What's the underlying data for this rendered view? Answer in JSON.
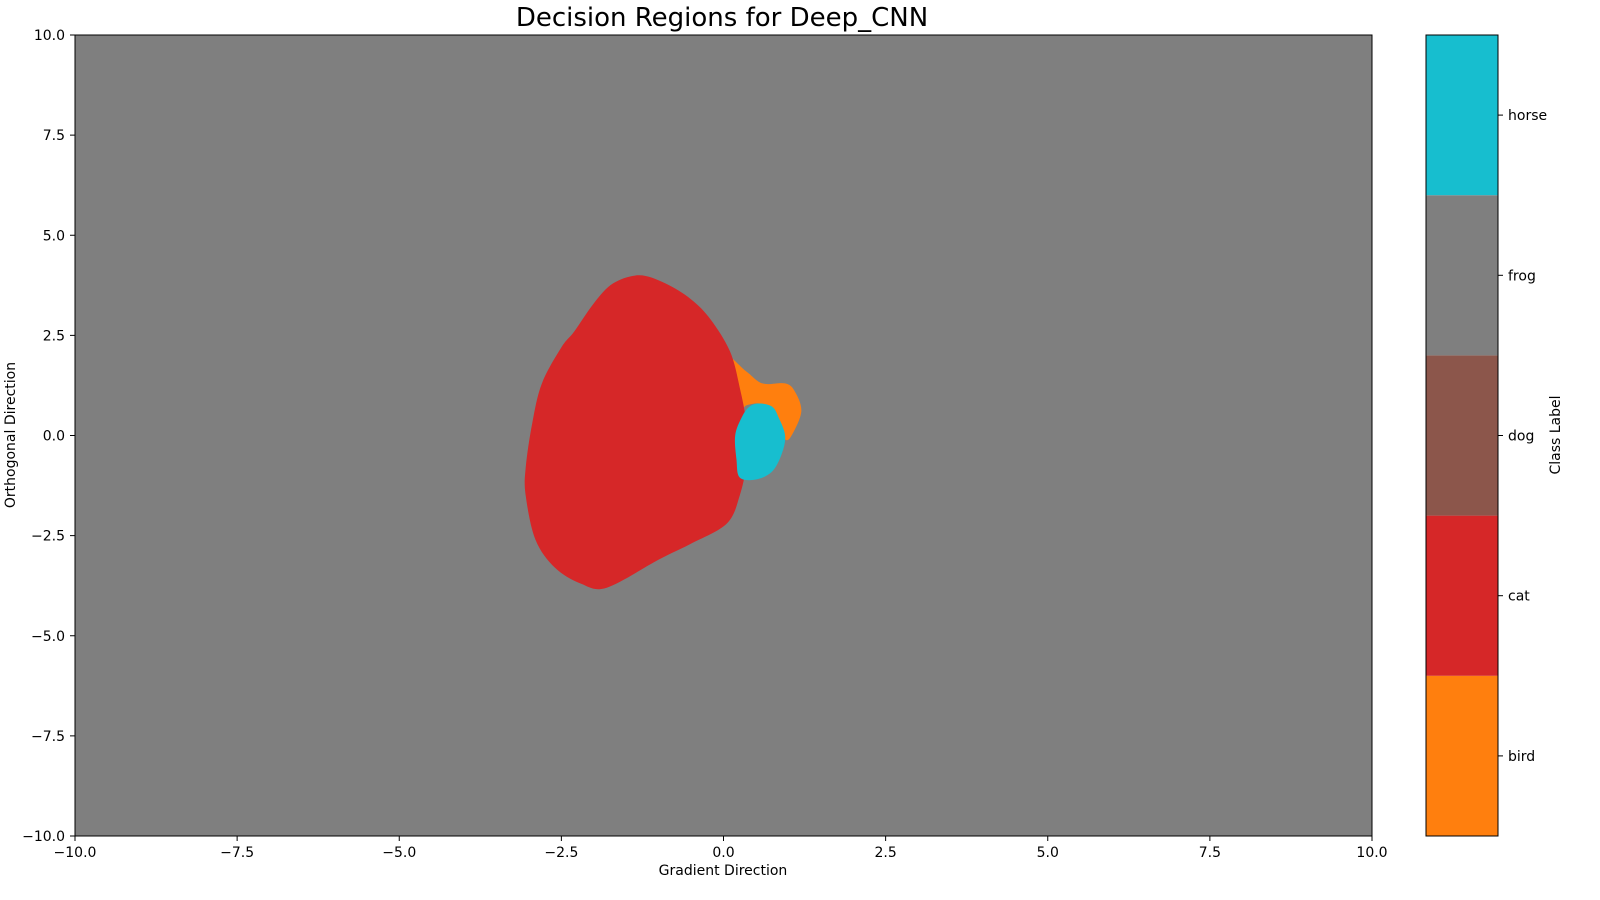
{
  "chart_data": {
    "type": "heatmap",
    "title": "Decision Regions for Deep_CNN",
    "xlabel": "Gradient Direction",
    "ylabel": "Orthogonal Direction",
    "xlim": [
      -10.0,
      10.0
    ],
    "ylim": [
      -10.0,
      10.0
    ],
    "xticks": [
      -10.0,
      -7.5,
      -5.0,
      -2.5,
      0.0,
      2.5,
      5.0,
      7.5,
      10.0
    ],
    "yticks": [
      -10.0,
      -7.5,
      -5.0,
      -2.5,
      0.0,
      2.5,
      5.0,
      7.5,
      10.0
    ],
    "xtick_labels": [
      "−10.0",
      "−7.5",
      "−5.0",
      "−2.5",
      "0.0",
      "2.5",
      "5.0",
      "7.5",
      "10.0"
    ],
    "ytick_labels": [
      "−10.0",
      "−7.5",
      "−5.0",
      "−2.5",
      "0.0",
      "2.5",
      "5.0",
      "7.5",
      "10.0"
    ],
    "grid": false,
    "background_class": "frog",
    "classes": [
      {
        "name": "bird",
        "color": "#ff7f0e"
      },
      {
        "name": "cat",
        "color": "#d62728"
      },
      {
        "name": "dog",
        "color": "#8c564b"
      },
      {
        "name": "frog",
        "color": "#7f7f7f"
      },
      {
        "name": "horse",
        "color": "#17becf"
      }
    ],
    "regions": [
      {
        "class": "bird",
        "points": [
          [
            0.0,
            2.0
          ],
          [
            0.35,
            1.6
          ],
          [
            0.6,
            1.3
          ],
          [
            0.95,
            1.3
          ],
          [
            1.1,
            1.1
          ],
          [
            1.2,
            0.6
          ],
          [
            1.05,
            0.0
          ],
          [
            0.95,
            -0.1
          ],
          [
            0.85,
            0.25
          ],
          [
            0.7,
            0.7
          ],
          [
            0.55,
            0.8
          ],
          [
            0.35,
            0.75
          ],
          [
            0.2,
            0.6
          ]
        ]
      },
      {
        "class": "cat",
        "points": [
          [
            -1.3,
            4.0
          ],
          [
            -0.9,
            3.8
          ],
          [
            -0.5,
            3.4
          ],
          [
            -0.2,
            2.9
          ],
          [
            0.1,
            2.1
          ],
          [
            0.25,
            1.2
          ],
          [
            0.35,
            0.3
          ],
          [
            0.35,
            -0.7
          ],
          [
            0.25,
            -1.5
          ],
          [
            0.05,
            -2.2
          ],
          [
            -0.5,
            -2.7
          ],
          [
            -1.0,
            -3.1
          ],
          [
            -1.8,
            -3.8
          ],
          [
            -2.2,
            -3.7
          ],
          [
            -2.6,
            -3.3
          ],
          [
            -2.9,
            -2.6
          ],
          [
            -3.05,
            -1.5
          ],
          [
            -3.05,
            -0.8
          ],
          [
            -2.95,
            0.3
          ],
          [
            -2.8,
            1.3
          ],
          [
            -2.5,
            2.2
          ],
          [
            -2.3,
            2.6
          ],
          [
            -2.0,
            3.3
          ],
          [
            -1.7,
            3.8
          ]
        ]
      },
      {
        "class": "horse",
        "points": [
          [
            0.55,
            0.8
          ],
          [
            0.75,
            0.72
          ],
          [
            0.85,
            0.45
          ],
          [
            0.95,
            0.0
          ],
          [
            0.9,
            -0.45
          ],
          [
            0.75,
            -0.9
          ],
          [
            0.5,
            -1.1
          ],
          [
            0.25,
            -1.05
          ],
          [
            0.2,
            -0.6
          ],
          [
            0.18,
            0.0
          ],
          [
            0.28,
            0.45
          ],
          [
            0.4,
            0.72
          ]
        ]
      }
    ],
    "colorbar": {
      "label": "Class Label",
      "labels": [
        "bird",
        "cat",
        "dog",
        "frog",
        "horse"
      ]
    }
  }
}
